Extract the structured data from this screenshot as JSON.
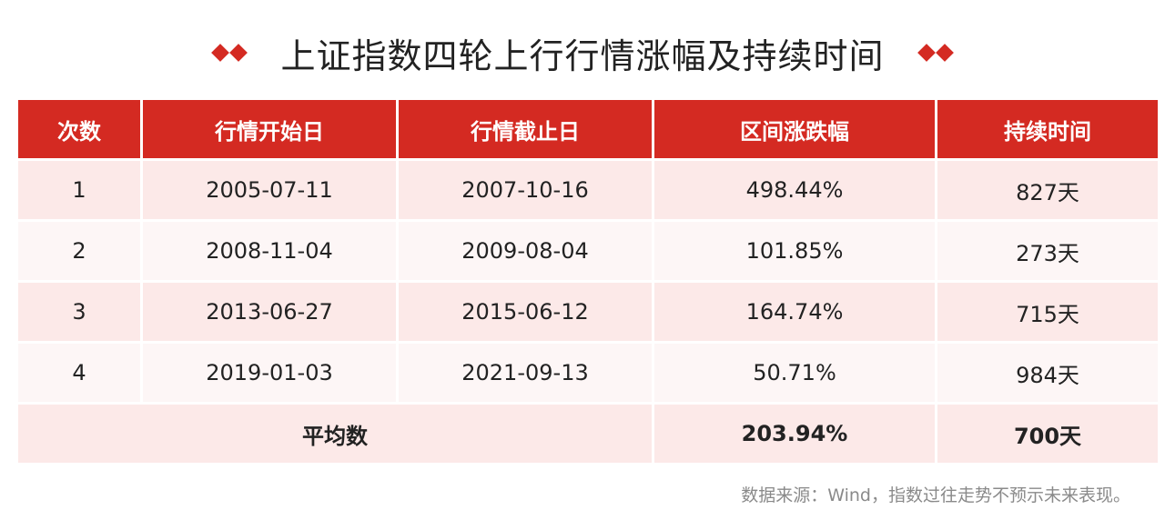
{
  "title": "上证指数四轮上行行情涨幅及持续时间",
  "accent_color": "#d42a22",
  "table": {
    "headers": [
      "次数",
      "行情开始日",
      "行情截止日",
      "区间涨跌幅",
      "持续时间"
    ],
    "rows": [
      [
        "1",
        "2005-07-11",
        "2007-10-16",
        "498.44%",
        "827天"
      ],
      [
        "2",
        "2008-11-04",
        "2009-08-04",
        "101.85%",
        "273天"
      ],
      [
        "3",
        "2013-06-27",
        "2015-06-12",
        "164.74%",
        "715天"
      ],
      [
        "4",
        "2019-01-03",
        "2021-09-13",
        "50.71%",
        "984天"
      ]
    ],
    "average": {
      "label": "平均数",
      "change": "203.94%",
      "duration": "700天"
    }
  },
  "footnote": "数据来源：Wind，指数过往走势不预示未来表现。"
}
